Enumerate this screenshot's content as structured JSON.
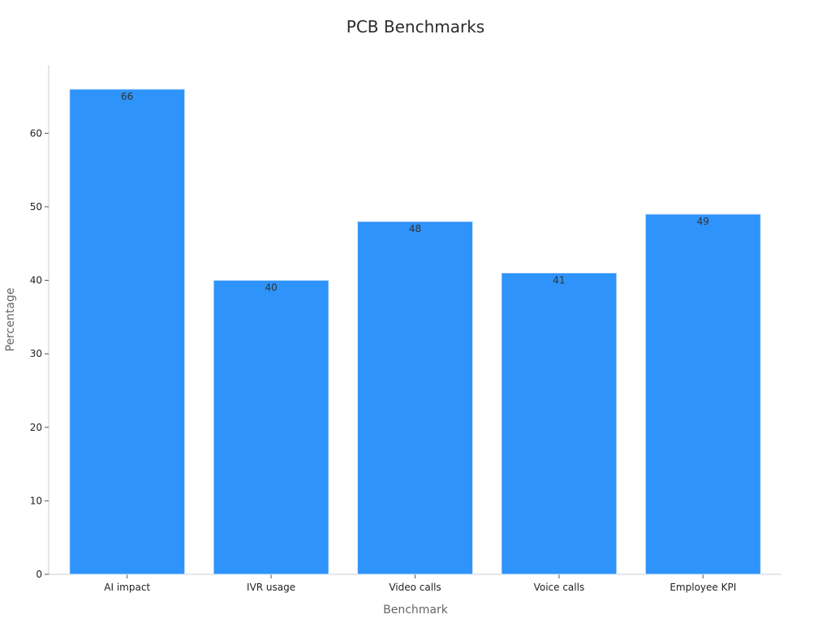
{
  "chart_data": {
    "type": "bar",
    "title": "PCB Benchmarks",
    "xlabel": "Benchmark",
    "ylabel": "Percentage",
    "categories": [
      "AI impact",
      "IVR usage",
      "Video calls",
      "Voice calls",
      "Employee KPI"
    ],
    "values": [
      66,
      40,
      48,
      41,
      49
    ],
    "yticks": [
      0,
      10,
      20,
      30,
      40,
      50,
      60
    ],
    "ylim": [
      0,
      69.3
    ],
    "grid": false,
    "legend": "none",
    "bar_color": "#2e93fa"
  }
}
